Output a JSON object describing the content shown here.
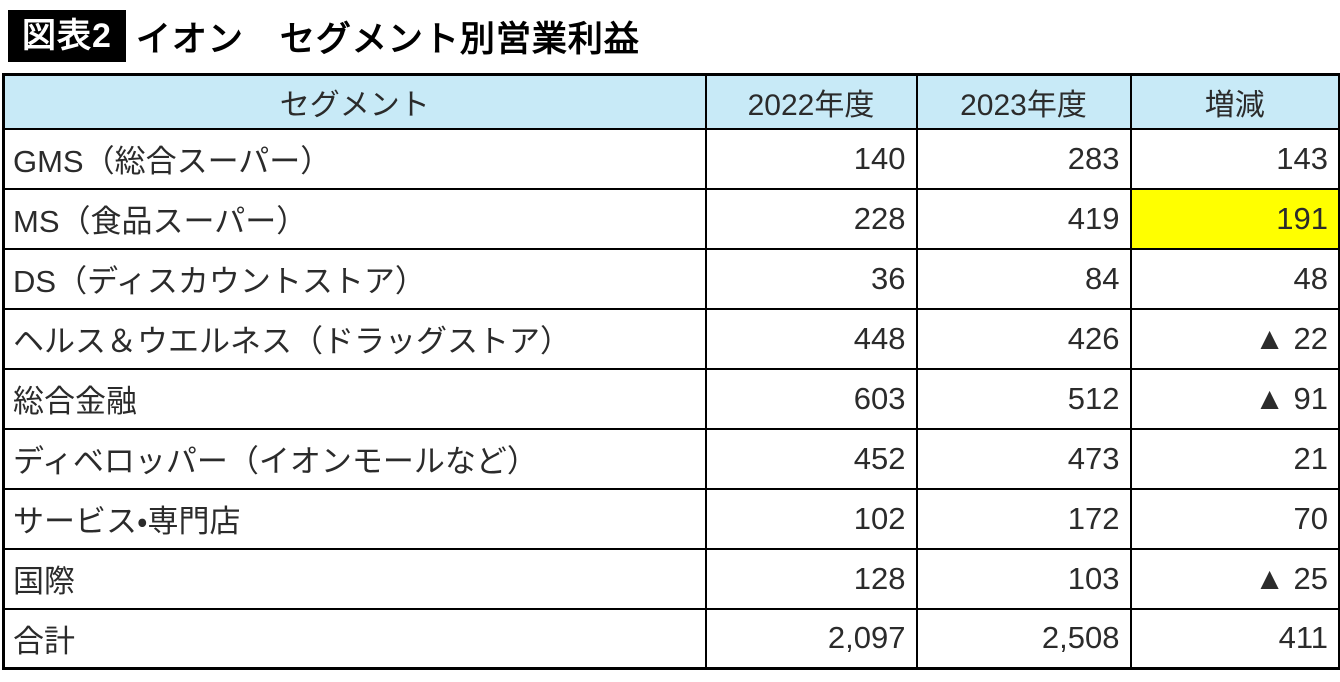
{
  "header": {
    "badge": "図表2",
    "title": "イオン　セグメント別営業利益"
  },
  "colors": {
    "badge_bg": "#000000",
    "badge_text": "#ffffff",
    "table_header_bg": "#c8eaf7",
    "highlight_bg": "#ffff00",
    "border": "#000000"
  },
  "table": {
    "headers": [
      "セグメント",
      "2022年度",
      "2023年度",
      "増減"
    ],
    "rows": [
      {
        "segment": "GMS（総合スーパー）",
        "fy2022": "140",
        "fy2023": "283",
        "change": "143"
      },
      {
        "segment": "MS（食品スーパー）",
        "fy2022": "228",
        "fy2023": "419",
        "change": "191"
      },
      {
        "segment": "DS（ディスカウントストア）",
        "fy2022": "36",
        "fy2023": "84",
        "change": "48"
      },
      {
        "segment": "ヘルス＆ウエルネス（ドラッグストア）",
        "fy2022": "448",
        "fy2023": "426",
        "change": "▲ 22"
      },
      {
        "segment": "総合金融",
        "fy2022": "603",
        "fy2023": "512",
        "change": "▲ 91"
      },
      {
        "segment": "ディベロッパー（イオンモールなど）",
        "fy2022": "452",
        "fy2023": "473",
        "change": "21"
      },
      {
        "segment": "サービス・専門店",
        "fy2022": "102",
        "fy2023": "172",
        "change": "70"
      },
      {
        "segment": "国際",
        "fy2022": "128",
        "fy2023": "103",
        "change": "▲ 25"
      },
      {
        "segment": "合計",
        "fy2022": "2,097",
        "fy2023": "2,508",
        "change": "411"
      }
    ]
  },
  "chart_data": {
    "type": "table",
    "title": "図表2 イオン セグメント別営業利益",
    "columns": [
      "セグメント",
      "2022年度",
      "2023年度",
      "増減"
    ],
    "rows": [
      [
        "GMS（総合スーパー）",
        140,
        283,
        143
      ],
      [
        "MS（食品スーパー）",
        228,
        419,
        191
      ],
      [
        "DS（ディスカウントストア）",
        36,
        84,
        48
      ],
      [
        "ヘルス＆ウエルネス（ドラッグストア）",
        448,
        426,
        -22
      ],
      [
        "総合金融",
        603,
        512,
        -91
      ],
      [
        "ディベロッパー（イオンモールなど）",
        452,
        473,
        21
      ],
      [
        "サービス・専門店",
        102,
        172,
        70
      ],
      [
        "国際",
        128,
        103,
        -25
      ],
      [
        "合計",
        2097,
        2508,
        411
      ]
    ],
    "notes": "▲ = 減少（マイナス）。MS（食品スーパー）の増減セルは黄色でハイライト。"
  }
}
